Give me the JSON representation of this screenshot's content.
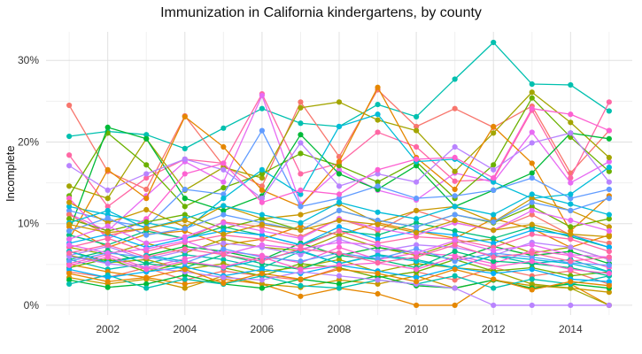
{
  "chart_data": {
    "type": "line",
    "title": "Immunization in California kindergartens, by county",
    "ylabel": "Incomplete",
    "xlabel": "",
    "legend": "none",
    "grid": true,
    "x": [
      2001,
      2002,
      2003,
      2004,
      2005,
      2006,
      2007,
      2008,
      2009,
      2010,
      2011,
      2012,
      2013,
      2014,
      2015
    ],
    "xticks": [
      2002,
      2004,
      2006,
      2008,
      2010,
      2012,
      2014
    ],
    "yticks": [
      0,
      10,
      20,
      30
    ],
    "ytick_labels": [
      "0%",
      "10%",
      "20%",
      "30%"
    ],
    "xlim": [
      2000.4,
      2015.6
    ],
    "ylim": [
      -1.2,
      33.5
    ],
    "series": [
      {
        "color": "#00C0AF",
        "values": [
          20.7,
          21.3,
          20.9,
          19.2,
          21.7,
          24.1,
          22.3,
          21.9,
          24.6,
          23.1,
          27.7,
          32.2,
          27.1,
          27.0,
          23.8
        ]
      },
      {
        "color": "#F8766D",
        "values": [
          24.5,
          16.4,
          14.2,
          23.2,
          17.1,
          14.6,
          24.9,
          18.2,
          26.4,
          21.9,
          24.1,
          21.8,
          24.4,
          16.2,
          21.4
        ]
      },
      {
        "color": "#FF67A4",
        "values": [
          18.4,
          12.1,
          15.6,
          17.9,
          17.4,
          25.9,
          16.1,
          17.4,
          21.2,
          19.4,
          15.2,
          15.4,
          23.9,
          15.6,
          24.9
        ]
      },
      {
        "color": "#E76BF3",
        "values": [
          11.2,
          9.1,
          13.4,
          17.6,
          15.1,
          25.7,
          12.4,
          16.6,
          14.1,
          12.9,
          16.2,
          15.1,
          21.2,
          15.0,
          17.6
        ]
      },
      {
        "color": "#A3A500",
        "values": [
          14.6,
          13.1,
          20.4,
          14.1,
          16.9,
          15.6,
          24.2,
          24.9,
          22.7,
          21.4,
          16.4,
          21.1,
          26.1,
          22.4,
          18.1
        ]
      },
      {
        "color": "#6BB100",
        "values": [
          13.4,
          21.1,
          17.2,
          12.1,
          14.4,
          16.1,
          18.6,
          17.1,
          15.1,
          17.6,
          13.1,
          17.2,
          25.4,
          20.6,
          16.4
        ]
      },
      {
        "color": "#00BA38",
        "values": [
          9.1,
          21.8,
          20.4,
          13.1,
          11.6,
          13.4,
          20.9,
          16.1,
          14.2,
          17.1,
          12.1,
          14.1,
          16.2,
          21.1,
          20.4
        ]
      },
      {
        "color": "#E58700",
        "values": [
          8.1,
          16.6,
          13.1,
          23.1,
          19.4,
          14.1,
          12.1,
          17.6,
          26.7,
          18.1,
          14.2,
          21.9,
          17.4,
          9.1,
          13.4
        ]
      },
      {
        "color": "#619CFF",
        "values": [
          11.6,
          10.4,
          9.6,
          14.2,
          13.6,
          21.4,
          12.1,
          13.1,
          14.6,
          13.1,
          13.4,
          14.1,
          15.6,
          13.1,
          14.2
        ]
      },
      {
        "color": "#00BCD8",
        "values": [
          12.1,
          11.1,
          10.1,
          9.2,
          13.1,
          16.6,
          13.6,
          21.9,
          23.4,
          17.6,
          17.9,
          15.1,
          13.1,
          13.6,
          16.9
        ]
      },
      {
        "color": "#B983FF",
        "values": [
          17.1,
          14.1,
          16.1,
          17.9,
          16.6,
          13.1,
          19.9,
          14.6,
          16.1,
          15.1,
          19.4,
          16.6,
          19.9,
          21.1,
          15.1
        ]
      },
      {
        "color": "#FD61D1",
        "values": [
          13.1,
          8.1,
          10.6,
          16.1,
          17.4,
          12.6,
          14.1,
          13.6,
          16.6,
          17.9,
          18.1,
          15.6,
          24.1,
          23.4,
          21.4
        ]
      },
      {
        "color": "#F8766D",
        "values": [
          11.1,
          8.6,
          9.4,
          8.1,
          10.2,
          9.6,
          8.4,
          10.6,
          9.1,
          11.6,
          10.1,
          9.2,
          11.1,
          8.6,
          7.6
        ]
      },
      {
        "color": "#E58700",
        "values": [
          9.6,
          7.1,
          8.7,
          9.1,
          7.4,
          8.1,
          9.7,
          8.6,
          10.1,
          9.1,
          8.2,
          10.6,
          9.4,
          7.1,
          8.6
        ]
      },
      {
        "color": "#C99800",
        "values": [
          12.6,
          10.1,
          11.7,
          9.6,
          12.2,
          10.6,
          11.1,
          12.4,
          10.1,
          11.6,
          12.1,
          10.2,
          13.1,
          11.6,
          9.6
        ]
      },
      {
        "color": "#A3A500",
        "values": [
          7.1,
          6.2,
          7.6,
          6.4,
          8.1,
          7.1,
          6.7,
          8.6,
          7.1,
          6.1,
          7.7,
          8.1,
          6.4,
          7.1,
          5.6
        ]
      },
      {
        "color": "#6BB100",
        "values": [
          10.6,
          9.1,
          10.2,
          11.1,
          9.4,
          10.6,
          9.2,
          11.6,
          10.4,
          9.6,
          11.1,
          10.1,
          12.1,
          9.6,
          10.6
        ]
      },
      {
        "color": "#00BA38",
        "values": [
          6.6,
          5.4,
          6.1,
          7.2,
          6.6,
          5.6,
          7.6,
          6.1,
          7.1,
          6.4,
          5.6,
          7.2,
          6.1,
          6.6,
          5.1
        ]
      },
      {
        "color": "#00BF7D",
        "values": [
          8.6,
          7.4,
          9.1,
          8.2,
          9.6,
          8.6,
          7.4,
          9.1,
          8.6,
          10.1,
          9.1,
          8.2,
          9.6,
          8.4,
          7.1
        ]
      },
      {
        "color": "#00C0AF",
        "values": [
          5.6,
          4.4,
          5.1,
          6.2,
          5.6,
          4.6,
          6.6,
          5.1,
          6.2,
          5.6,
          4.6,
          6.1,
          5.1,
          5.6,
          4.1
        ]
      },
      {
        "color": "#00BCD8",
        "values": [
          10.1,
          11.6,
          9.4,
          10.6,
          12.2,
          11.1,
          10.1,
          12.6,
          11.4,
          10.6,
          12.1,
          11.1,
          13.6,
          12.4,
          11.1
        ]
      },
      {
        "color": "#00B0F6",
        "values": [
          7.6,
          8.7,
          7.1,
          8.2,
          9.1,
          8.6,
          7.4,
          9.6,
          8.1,
          9.1,
          8.6,
          7.6,
          9.2,
          8.6,
          7.1
        ]
      },
      {
        "color": "#619CFF",
        "values": [
          9.1,
          10.7,
          8.6,
          9.4,
          11.1,
          10.1,
          9.2,
          11.6,
          10.4,
          9.6,
          11.1,
          10.2,
          12.6,
          11.6,
          13.1
        ]
      },
      {
        "color": "#B983FF",
        "values": [
          6.1,
          7.2,
          5.6,
          6.7,
          7.6,
          7.1,
          6.2,
          8.1,
          6.6,
          7.4,
          7.1,
          6.1,
          7.7,
          7.1,
          5.6
        ]
      },
      {
        "color": "#E76BF3",
        "values": [
          8.1,
          9.7,
          7.6,
          8.4,
          10.1,
          9.1,
          8.2,
          10.6,
          9.4,
          8.6,
          10.1,
          9.2,
          11.6,
          10.4,
          9.1
        ]
      },
      {
        "color": "#FD61D1",
        "values": [
          5.1,
          6.2,
          4.6,
          5.7,
          6.6,
          6.1,
          5.2,
          7.1,
          5.6,
          6.4,
          6.1,
          5.1,
          6.7,
          6.1,
          4.6
        ]
      },
      {
        "color": "#FF67A4",
        "values": [
          7.1,
          8.2,
          6.6,
          7.7,
          8.6,
          8.1,
          7.2,
          9.1,
          7.6,
          8.4,
          8.1,
          7.1,
          8.7,
          8.1,
          6.6
        ]
      },
      {
        "color": "#F8766D",
        "values": [
          4.1,
          3.4,
          4.6,
          3.1,
          4.2,
          3.6,
          3.1,
          4.6,
          3.4,
          4.1,
          3.1,
          4.6,
          3.6,
          4.2,
          2.6
        ]
      },
      {
        "color": "#E58700",
        "values": [
          5.0,
          4.1,
          3.4,
          2.6,
          3.2,
          2.6,
          1.1,
          2.1,
          1.4,
          0.0,
          0.0,
          3.1,
          2.1,
          2.6,
          0.0
        ]
      },
      {
        "color": "#C99800",
        "values": [
          3.4,
          2.6,
          3.2,
          2.1,
          3.6,
          2.6,
          2.2,
          3.1,
          2.6,
          3.6,
          2.1,
          3.1,
          2.4,
          2.1,
          1.6
        ]
      },
      {
        "color": "#A3A500",
        "values": [
          6.1,
          5.2,
          5.6,
          4.4,
          5.1,
          4.1,
          4.7,
          5.6,
          4.1,
          5.1,
          4.6,
          4.2,
          2.6,
          2.1,
          0.0
        ]
      },
      {
        "color": "#6BB100",
        "values": [
          4.6,
          5.7,
          4.1,
          5.2,
          4.6,
          3.6,
          5.1,
          4.6,
          3.4,
          4.1,
          5.6,
          4.2,
          4.6,
          3.6,
          4.1
        ]
      },
      {
        "color": "#00BA38",
        "values": [
          3.1,
          2.2,
          2.6,
          3.7,
          2.6,
          2.1,
          3.2,
          2.6,
          3.6,
          2.4,
          2.1,
          3.1,
          2.1,
          2.6,
          2.1
        ]
      },
      {
        "color": "#00BF7D",
        "values": [
          5.6,
          6.7,
          5.1,
          4.6,
          6.2,
          5.1,
          4.4,
          6.1,
          5.6,
          4.6,
          6.6,
          5.4,
          5.1,
          4.6,
          3.6
        ]
      },
      {
        "color": "#00C0AF",
        "values": [
          2.6,
          3.7,
          2.1,
          3.2,
          2.6,
          3.6,
          2.4,
          2.1,
          3.1,
          2.6,
          3.6,
          2.1,
          3.2,
          2.6,
          3.6
        ]
      },
      {
        "color": "#00BCD8",
        "values": [
          6.6,
          5.2,
          6.1,
          5.4,
          4.6,
          5.6,
          6.7,
          5.1,
          6.1,
          5.4,
          4.6,
          6.1,
          5.6,
          5.1,
          4.1
        ]
      },
      {
        "color": "#00B0F6",
        "values": [
          4.4,
          3.4,
          4.1,
          4.7,
          3.6,
          4.4,
          3.9,
          4.9,
          4.2,
          3.4,
          4.6,
          3.9,
          4.4,
          3.2,
          2.9
        ]
      },
      {
        "color": "#619CFF",
        "values": [
          5.4,
          6.4,
          5.9,
          5.2,
          6.9,
          5.9,
          5.4,
          6.4,
          5.7,
          6.9,
          5.4,
          6.4,
          5.9,
          5.2,
          4.9
        ]
      },
      {
        "color": "#B983FF",
        "values": [
          6.0,
          5.1,
          4.6,
          4.1,
          3.4,
          3.1,
          4.1,
          3.6,
          3.1,
          2.6,
          2.1,
          0.0,
          0.0,
          0.0,
          0.0
        ]
      },
      {
        "color": "#E76BF3",
        "values": [
          7.4,
          6.4,
          6.9,
          7.9,
          6.2,
          7.4,
          6.9,
          7.7,
          7.4,
          6.4,
          7.9,
          6.7,
          7.4,
          6.2,
          5.9
        ]
      },
      {
        "color": "#FD61D1",
        "values": [
          4.9,
          5.9,
          4.4,
          5.4,
          4.7,
          5.9,
          4.4,
          4.9,
          5.2,
          4.4,
          5.9,
          4.7,
          5.4,
          4.4,
          3.9
        ]
      },
      {
        "color": "#FF67A4",
        "values": [
          6.4,
          7.4,
          5.9,
          6.9,
          6.2,
          5.4,
          6.9,
          6.4,
          5.2,
          5.9,
          7.4,
          5.9,
          6.4,
          5.4,
          5.9
        ]
      },
      {
        "color": "#C99800",
        "values": [
          9.9,
          8.9,
          9.4,
          10.4,
          8.7,
          9.9,
          9.2,
          10.4,
          9.9,
          8.9,
          10.4,
          9.2,
          9.9,
          8.7,
          8.4
        ]
      },
      {
        "color": "#E58700",
        "values": [
          3.9,
          2.9,
          3.4,
          4.4,
          2.7,
          3.9,
          3.2,
          4.4,
          3.9,
          2.9,
          4.4,
          3.2,
          1.9,
          2.9,
          2.4
        ]
      }
    ]
  }
}
